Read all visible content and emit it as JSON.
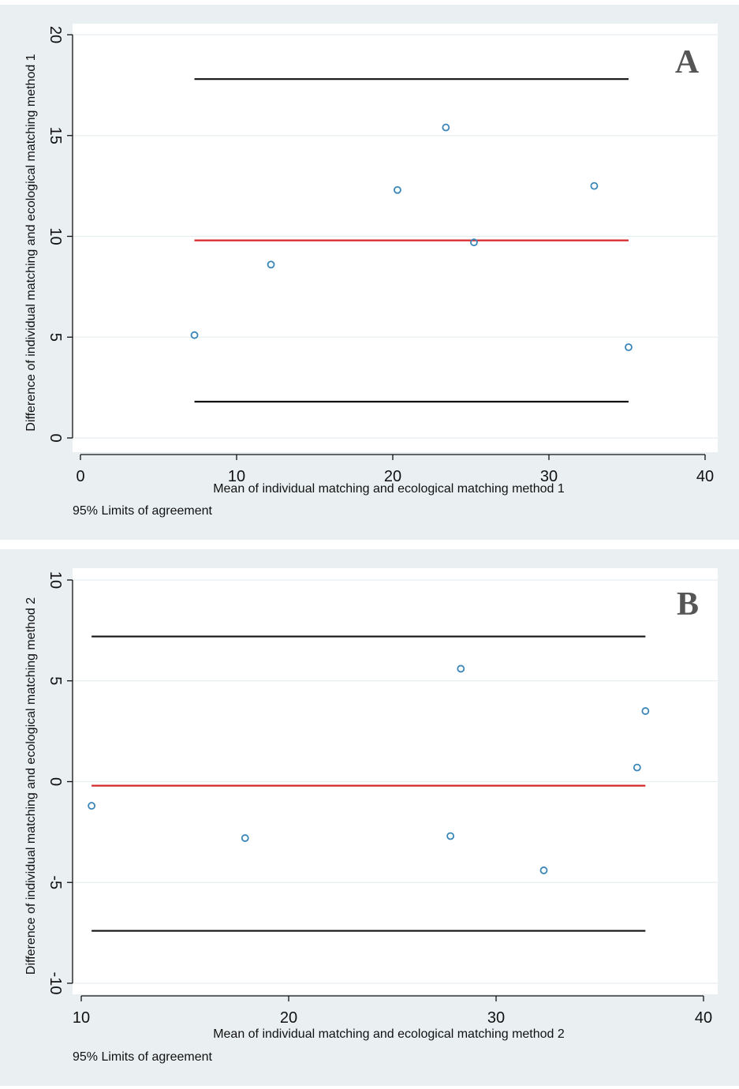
{
  "chart_data": [
    {
      "type": "scatter",
      "panel_label": "A",
      "xlabel": "Mean of individual matching and ecological matching method 1",
      "ylabel": "Difference of individual matching and ecological matching method 1",
      "legend": "95% Limits of agreement",
      "xlim": [
        0,
        40
      ],
      "ylim": [
        0,
        20
      ],
      "xticks": [
        0,
        10,
        20,
        30,
        40
      ],
      "yticks": [
        0,
        5,
        10,
        15,
        20
      ],
      "grid": true,
      "points": [
        {
          "x": 7.3,
          "y": 5.1
        },
        {
          "x": 12.2,
          "y": 8.6
        },
        {
          "x": 20.3,
          "y": 12.3
        },
        {
          "x": 23.4,
          "y": 15.4
        },
        {
          "x": 25.2,
          "y": 9.7
        },
        {
          "x": 32.9,
          "y": 12.5
        },
        {
          "x": 35.1,
          "y": 4.5
        }
      ],
      "lines": [
        {
          "name": "upper limit",
          "y": 17.8,
          "x": [
            7.3,
            35.1
          ],
          "color": "#111111"
        },
        {
          "name": "mean difference",
          "y": 9.8,
          "x": [
            7.3,
            35.1
          ],
          "color": "#d62728"
        },
        {
          "name": "lower limit",
          "y": 1.8,
          "x": [
            7.3,
            35.1
          ],
          "color": "#111111"
        }
      ],
      "point_color": "#3a86b8"
    },
    {
      "type": "scatter",
      "panel_label": "B",
      "xlabel": "Mean of individual matching and ecological matching method 2",
      "ylabel": "Difference of individual matching and ecological matching method 2",
      "legend": "95% Limits of agreement",
      "xlim": [
        10,
        40
      ],
      "ylim": [
        -10,
        10
      ],
      "xticks": [
        10,
        20,
        30,
        40
      ],
      "yticks": [
        -10,
        -5,
        0,
        5,
        10
      ],
      "grid": true,
      "points": [
        {
          "x": 10.5,
          "y": -1.2
        },
        {
          "x": 17.9,
          "y": -2.8
        },
        {
          "x": 27.8,
          "y": -2.7
        },
        {
          "x": 28.3,
          "y": 5.6
        },
        {
          "x": 32.3,
          "y": -4.4
        },
        {
          "x": 36.8,
          "y": 0.7
        },
        {
          "x": 37.2,
          "y": 3.5
        }
      ],
      "lines": [
        {
          "name": "upper limit",
          "y": 7.2,
          "x": [
            10.5,
            37.2
          ],
          "color": "#111111"
        },
        {
          "name": "mean difference",
          "y": -0.2,
          "x": [
            10.5,
            37.2
          ],
          "color": "#d62728"
        },
        {
          "name": "lower limit",
          "y": -7.4,
          "x": [
            10.5,
            37.2
          ],
          "color": "#111111"
        }
      ],
      "point_color": "#3a86b8"
    }
  ]
}
